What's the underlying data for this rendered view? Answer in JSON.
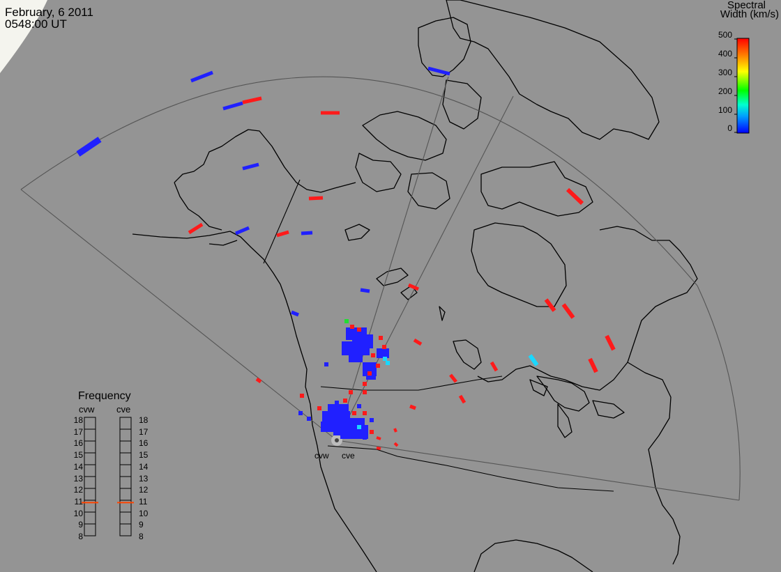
{
  "header": {
    "date": "February, 6 2011",
    "time": "0548:00 UT"
  },
  "colorbar": {
    "title_line1": "Spectral",
    "title_line2": "Width (km/s)",
    "ticks": [
      "500",
      "400",
      "300",
      "200",
      "100",
      "0"
    ]
  },
  "frequency_panel": {
    "title": "Frequency",
    "radars": [
      "cvw",
      "cve"
    ],
    "scale": [
      "18",
      "17",
      "16",
      "15",
      "14",
      "13",
      "12",
      "11",
      "10",
      "9",
      "8"
    ],
    "cvw_mhz": 10.8,
    "cve_mhz": 10.8
  },
  "radar_sites": [
    "cvw",
    "cve"
  ],
  "colors": {
    "background": "#949494",
    "coast": "#000000",
    "fov": "#555555",
    "low_width": "#2020ff",
    "high_width": "#ff1a1a",
    "cyan": "#19d8ff",
    "green": "#22dd33",
    "frequency_marker": "#ff4400"
  }
}
